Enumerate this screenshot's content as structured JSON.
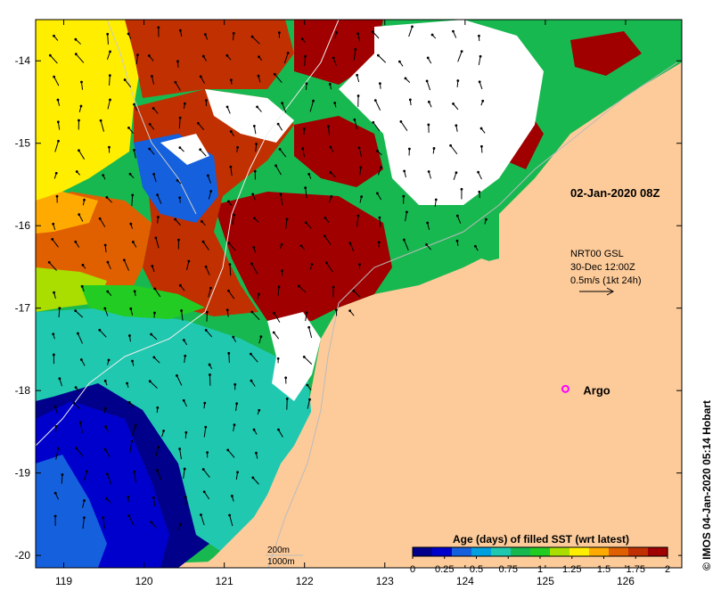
{
  "map": {
    "lon_ticks": [
      "119",
      "120",
      "121",
      "122",
      "123",
      "124",
      "125",
      "126"
    ],
    "lat_ticks": [
      "-14",
      "-15",
      "-16",
      "-17",
      "-18",
      "-19",
      "-20"
    ],
    "lon_range": [
      118.65,
      126.7
    ],
    "lat_range": [
      -20.15,
      -13.5
    ],
    "timestamp_label": "02-Jan-2020 08Z",
    "current_note": {
      "line1": "NRT00 GSL",
      "line2": "30-Dec 12:00Z",
      "line3": "0.5m/s (1kt 24h)"
    },
    "argo": {
      "label": "Argo",
      "lon": 125.25,
      "lat": -17.98,
      "color": "#ff00ff"
    },
    "isobaths": {
      "shallow": "200m",
      "deep": "1000m"
    },
    "colorbar": {
      "title": "Age (days) of filled SST (wrt latest)",
      "tick_labels": [
        "0",
        "0.25",
        "0.5",
        "0.75",
        "1",
        "1.25",
        "1.5",
        "1.75",
        "2"
      ],
      "tick_values": [
        0,
        0.25,
        0.5,
        0.75,
        1,
        1.25,
        1.5,
        1.75,
        2
      ],
      "colors": [
        "#00008b",
        "#0000cd",
        "#1560dd",
        "#00a0e0",
        "#20c8b0",
        "#18b850",
        "#22cc22",
        "#aadd00",
        "#ffee00",
        "#ffaa00",
        "#e06000",
        "#c03000",
        "#a00000"
      ]
    },
    "credit": "© IMOS 04-Jan-2020 05:14 Hobart",
    "palette": {
      "land": "#fdcb9a",
      "nodata": "#ffffff",
      "axis": "#000000"
    }
  }
}
